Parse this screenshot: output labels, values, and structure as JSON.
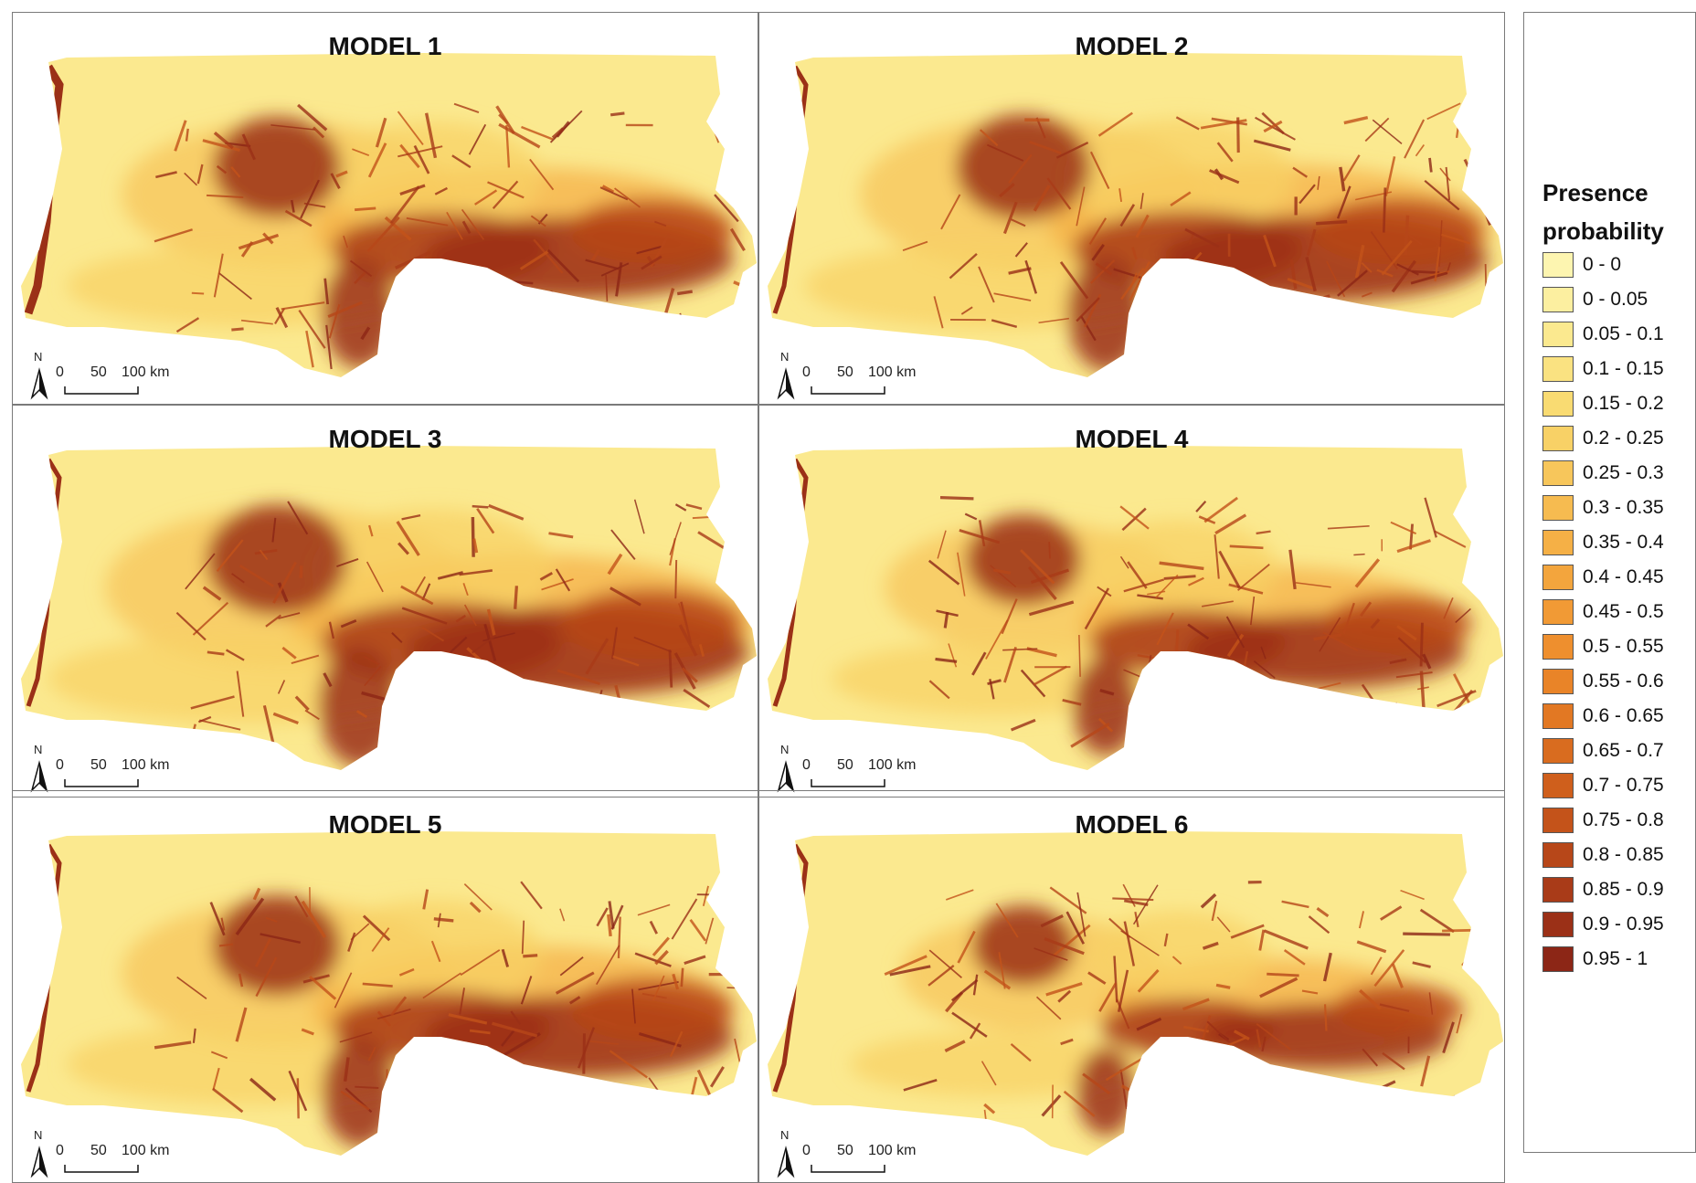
{
  "panels": [
    {
      "title": "MODEL 1",
      "north_label": "N",
      "scale_ticks": [
        "0",
        "50",
        "100 km"
      ],
      "intensity": 1.0
    },
    {
      "title": "MODEL 2",
      "north_label": "N",
      "scale_ticks": [
        "0",
        "50",
        "100 km"
      ],
      "intensity": 1.05
    },
    {
      "title": "MODEL 3",
      "north_label": "N",
      "scale_ticks": [
        "0",
        "50",
        "100 km"
      ],
      "intensity": 1.1
    },
    {
      "title": "MODEL 4",
      "north_label": "N",
      "scale_ticks": [
        "0",
        "50",
        "100 km"
      ],
      "intensity": 0.9
    },
    {
      "title": "MODEL 5",
      "north_label": "N",
      "scale_ticks": [
        "0",
        "50",
        "100 km"
      ],
      "intensity": 1.0
    },
    {
      "title": "MODEL 6",
      "north_label": "N",
      "scale_ticks": [
        "0",
        "50",
        "100 km"
      ],
      "intensity": 0.8
    }
  ],
  "legend": {
    "title_line1": "Presence",
    "title_line2": "probability",
    "items": [
      {
        "label": "0 - 0",
        "color": "#fdf5b0"
      },
      {
        "label": "0 - 0.05",
        "color": "#fcefa0"
      },
      {
        "label": "0.05 - 0.1",
        "color": "#fbe98f"
      },
      {
        "label": "0.1 - 0.15",
        "color": "#fae281"
      },
      {
        "label": "0.15 - 0.2",
        "color": "#f9db72"
      },
      {
        "label": "0.2 - 0.25",
        "color": "#f8d166"
      },
      {
        "label": "0.25 - 0.3",
        "color": "#f7c65b"
      },
      {
        "label": "0.3 - 0.35",
        "color": "#f6bb50"
      },
      {
        "label": "0.35 - 0.4",
        "color": "#f5b046"
      },
      {
        "label": "0.4 - 0.45",
        "color": "#f3a53d"
      },
      {
        "label": "0.45 - 0.5",
        "color": "#f19a35"
      },
      {
        "label": "0.5 - 0.55",
        "color": "#ee8f2e"
      },
      {
        "label": "0.55 - 0.6",
        "color": "#e98428"
      },
      {
        "label": "0.6 - 0.65",
        "color": "#e27823"
      },
      {
        "label": "0.65 - 0.7",
        "color": "#d96c1f"
      },
      {
        "label": "0.7 - 0.75",
        "color": "#cf5f1c"
      },
      {
        "label": "0.75 - 0.8",
        "color": "#c4531a"
      },
      {
        "label": "0.8 - 0.85",
        "color": "#b74719"
      },
      {
        "label": "0.85 - 0.9",
        "color": "#a93b18"
      },
      {
        "label": "0.9 - 0.95",
        "color": "#9b3017"
      },
      {
        "label": "0.95 - 1",
        "color": "#8c2616"
      }
    ]
  }
}
